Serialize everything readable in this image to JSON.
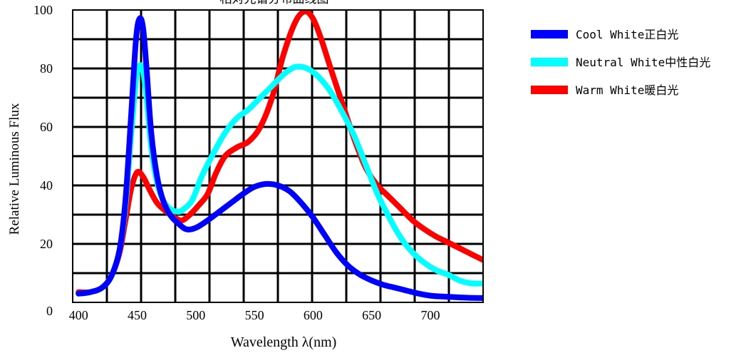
{
  "chart_data": {
    "type": "line",
    "title": "相对光谱分布曲线图",
    "xlabel": "Wavelength λ(nm)",
    "ylabel": "Relative Luminous Flux",
    "xlim": [
      395,
      745
    ],
    "ylim": [
      0,
      100
    ],
    "x_ticks": [
      400,
      450,
      500,
      550,
      600,
      650,
      700
    ],
    "y_ticks": [
      0,
      20,
      40,
      60,
      80,
      100
    ],
    "grid": true,
    "legend_position": "right",
    "series": [
      {
        "name": "Cool White正白光",
        "color": "#0000ff",
        "points": [
          [
            400,
            3
          ],
          [
            410,
            3.5
          ],
          [
            420,
            5
          ],
          [
            428,
            9
          ],
          [
            435,
            18
          ],
          [
            440,
            35
          ],
          [
            445,
            65
          ],
          [
            449,
            90
          ],
          [
            452,
            97
          ],
          [
            455,
            94
          ],
          [
            458,
            80
          ],
          [
            462,
            58
          ],
          [
            467,
            43
          ],
          [
            472,
            35
          ],
          [
            478,
            30
          ],
          [
            485,
            27
          ],
          [
            492,
            25
          ],
          [
            500,
            25.5
          ],
          [
            510,
            28
          ],
          [
            520,
            31
          ],
          [
            530,
            34
          ],
          [
            540,
            37
          ],
          [
            550,
            39.5
          ],
          [
            560,
            40.5
          ],
          [
            570,
            40
          ],
          [
            580,
            38
          ],
          [
            590,
            34
          ],
          [
            600,
            29
          ],
          [
            610,
            23
          ],
          [
            620,
            17
          ],
          [
            630,
            12.5
          ],
          [
            640,
            9.5
          ],
          [
            650,
            7.5
          ],
          [
            660,
            6
          ],
          [
            670,
            5
          ],
          [
            680,
            4
          ],
          [
            690,
            3
          ],
          [
            700,
            2.3
          ],
          [
            710,
            2
          ],
          [
            720,
            1.8
          ],
          [
            730,
            1.6
          ],
          [
            740,
            1.5
          ],
          [
            745,
            1.5
          ]
        ]
      },
      {
        "name": "Neutral White中性白光",
        "color": "#00ffff",
        "points": [
          [
            400,
            3
          ],
          [
            410,
            3.5
          ],
          [
            420,
            5
          ],
          [
            428,
            9
          ],
          [
            435,
            18
          ],
          [
            440,
            33
          ],
          [
            445,
            58
          ],
          [
            449,
            76
          ],
          [
            452,
            81
          ],
          [
            455,
            79
          ],
          [
            458,
            70
          ],
          [
            462,
            53
          ],
          [
            467,
            41
          ],
          [
            472,
            35
          ],
          [
            478,
            32
          ],
          [
            485,
            31
          ],
          [
            490,
            32
          ],
          [
            497,
            35
          ],
          [
            505,
            43
          ],
          [
            515,
            51
          ],
          [
            525,
            58
          ],
          [
            535,
            63
          ],
          [
            545,
            66
          ],
          [
            555,
            70
          ],
          [
            565,
            74
          ],
          [
            575,
            78
          ],
          [
            585,
            80.5
          ],
          [
            595,
            80
          ],
          [
            605,
            77
          ],
          [
            615,
            72
          ],
          [
            625,
            65
          ],
          [
            635,
            57
          ],
          [
            645,
            47
          ],
          [
            655,
            37
          ],
          [
            665,
            29
          ],
          [
            675,
            22
          ],
          [
            685,
            17
          ],
          [
            695,
            13.5
          ],
          [
            705,
            11
          ],
          [
            715,
            9.5
          ],
          [
            725,
            7.5
          ],
          [
            735,
            6.5
          ],
          [
            745,
            6.5
          ]
        ]
      },
      {
        "name": "Warm White暖白光",
        "color": "#ff0000",
        "points": [
          [
            400,
            3.5
          ],
          [
            410,
            3.5
          ],
          [
            420,
            5
          ],
          [
            428,
            9
          ],
          [
            435,
            17
          ],
          [
            440,
            28
          ],
          [
            445,
            39
          ],
          [
            450,
            44.5
          ],
          [
            455,
            43
          ],
          [
            460,
            39
          ],
          [
            467,
            34
          ],
          [
            475,
            31
          ],
          [
            482,
            29
          ],
          [
            488,
            28
          ],
          [
            495,
            30
          ],
          [
            502,
            33
          ],
          [
            510,
            37
          ],
          [
            517,
            44
          ],
          [
            525,
            50
          ],
          [
            535,
            53
          ],
          [
            545,
            55
          ],
          [
            555,
            60
          ],
          [
            565,
            70
          ],
          [
            575,
            85
          ],
          [
            585,
            96
          ],
          [
            593,
            99.5
          ],
          [
            600,
            97
          ],
          [
            607,
            90
          ],
          [
            615,
            80
          ],
          [
            625,
            68
          ],
          [
            635,
            56
          ],
          [
            645,
            46
          ],
          [
            655,
            40
          ],
          [
            665,
            36
          ],
          [
            675,
            32
          ],
          [
            685,
            28
          ],
          [
            695,
            25
          ],
          [
            705,
            22.5
          ],
          [
            715,
            20.5
          ],
          [
            725,
            18.5
          ],
          [
            735,
            16.5
          ],
          [
            745,
            14.5
          ]
        ]
      }
    ]
  }
}
